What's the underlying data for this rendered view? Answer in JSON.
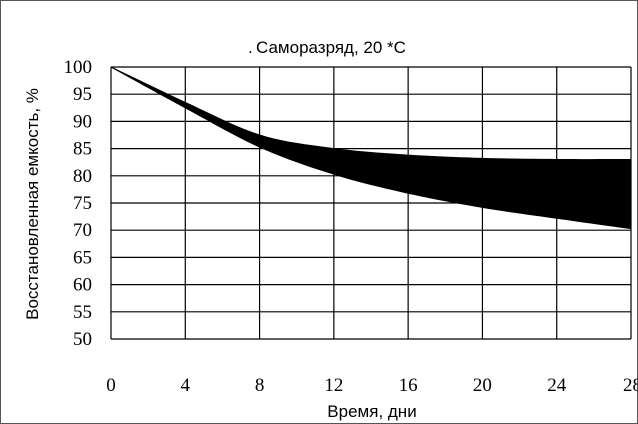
{
  "chart_data": {
    "type": "area",
    "title": "Саморазряд, 20 *С",
    "title_prefix": ".",
    "xlabel": "Время, дни",
    "ylabel": "Восстановленная емкость, %",
    "xlim": [
      0,
      28
    ],
    "ylim": [
      50,
      100
    ],
    "x_ticks": [
      "0",
      "4",
      "8",
      "12",
      "16",
      "20",
      "24",
      "28"
    ],
    "y_ticks": [
      "100",
      "95",
      "90",
      "85",
      "80",
      "75",
      "70",
      "65",
      "60",
      "55",
      "50"
    ],
    "grid": true,
    "band_color": "#000000",
    "x": [
      0,
      4,
      8,
      12,
      16,
      20,
      24,
      28
    ],
    "series": [
      {
        "values": [
          100,
          93.5,
          87.5,
          85,
          83.8,
          83.2,
          83,
          83
        ]
      },
      {
        "values": [
          100,
          92.5,
          85.3,
          80.3,
          76.8,
          74.2,
          72.2,
          70.3
        ]
      }
    ]
  }
}
